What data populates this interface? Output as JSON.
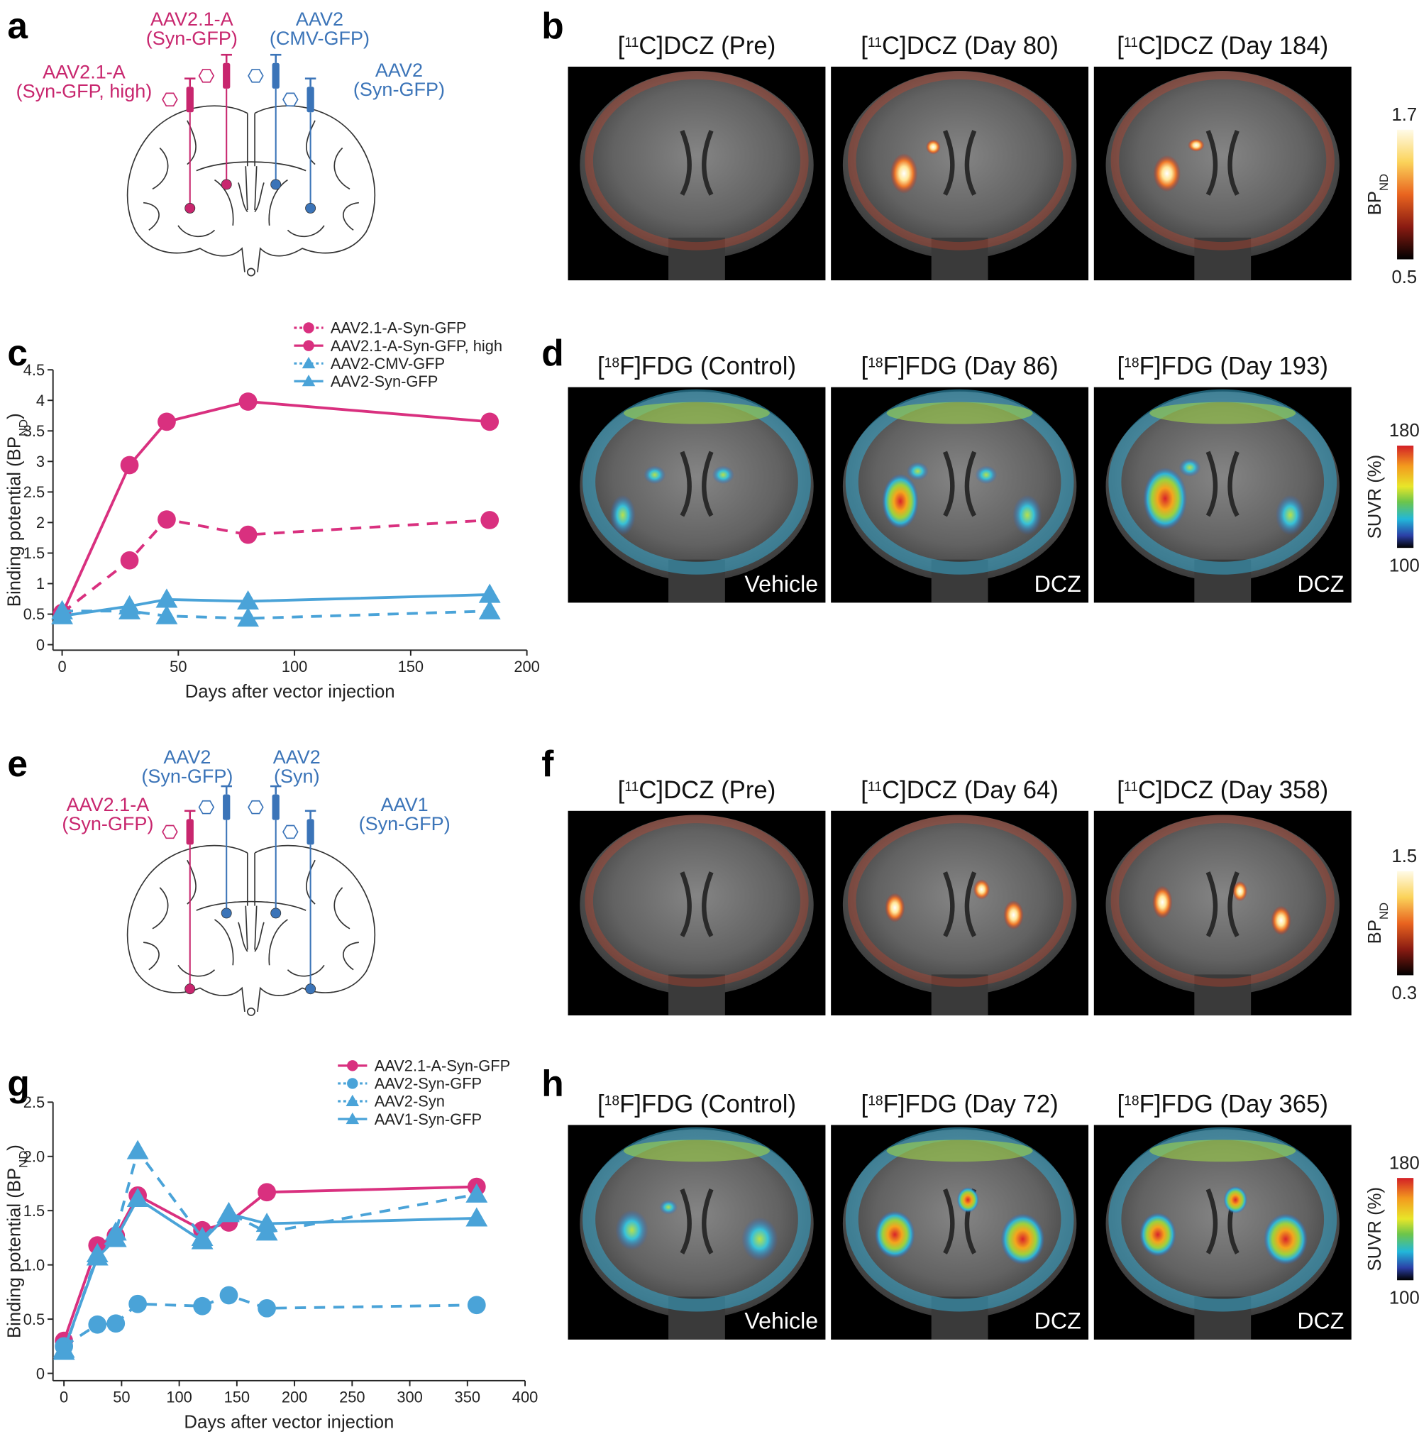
{
  "panels": {
    "a": {
      "label": "a",
      "injections": [
        {
          "lines": [
            "AAV2.1-A",
            "(Syn-GFP, high)"
          ],
          "color": "#c8266e"
        },
        {
          "lines": [
            "AAV2.1-A",
            "(Syn-GFP)"
          ],
          "color": "#c8266e"
        },
        {
          "lines": [
            "AAV2",
            "(CMV-GFP)"
          ],
          "color": "#3b74b8"
        },
        {
          "lines": [
            "AAV2",
            "(Syn-GFP)"
          ],
          "color": "#3b74b8"
        }
      ]
    },
    "b": {
      "label": "b",
      "images": [
        {
          "pre": "[",
          "sup": "11",
          "main": "C]DCZ (Pre)"
        },
        {
          "pre": "[",
          "sup": "11",
          "main": "C]DCZ (Day 80)"
        },
        {
          "pre": "[",
          "sup": "11",
          "main": "C]DCZ (Day 184)"
        }
      ],
      "colorbar": {
        "max": 1.7,
        "min": 0.5,
        "name": "BP",
        "sub": "ND"
      }
    },
    "c": {
      "label": "c"
    },
    "d": {
      "label": "d",
      "images": [
        {
          "pre": "[",
          "sup": "18",
          "main": "F]FDG (Control)",
          "note": "Vehicle"
        },
        {
          "pre": "[",
          "sup": "18",
          "main": "F]FDG (Day 86)",
          "note": "DCZ"
        },
        {
          "pre": "[",
          "sup": "18",
          "main": "F]FDG (Day 193)",
          "note": "DCZ"
        }
      ],
      "colorbar": {
        "max": 180,
        "min": 100,
        "name": "SUVR (%)"
      }
    },
    "e": {
      "label": "e",
      "injections": [
        {
          "lines": [
            "AAV2",
            "(Syn-GFP)"
          ],
          "color": "#3b74b8"
        },
        {
          "lines": [
            "AAV2",
            "(Syn)"
          ],
          "color": "#3b74b8"
        },
        {
          "lines": [
            "AAV2.1-A",
            "(Syn-GFP)"
          ],
          "color": "#c8266e"
        },
        {
          "lines": [
            "AAV1",
            "(Syn-GFP)"
          ],
          "color": "#3b74b8"
        }
      ]
    },
    "f": {
      "label": "f",
      "images": [
        {
          "pre": "[",
          "sup": "11",
          "main": "C]DCZ (Pre)"
        },
        {
          "pre": "[",
          "sup": "11",
          "main": "C]DCZ (Day 64)"
        },
        {
          "pre": "[",
          "sup": "11",
          "main": "C]DCZ (Day 358)"
        }
      ],
      "colorbar": {
        "max": 1.5,
        "min": 0.3,
        "name": "BP",
        "sub": "ND"
      }
    },
    "g": {
      "label": "g"
    },
    "h": {
      "label": "h",
      "images": [
        {
          "pre": "[",
          "sup": "18",
          "main": "F]FDG (Control)",
          "note": "Vehicle"
        },
        {
          "pre": "[",
          "sup": "18",
          "main": "F]FDG (Day 72)",
          "note": "DCZ"
        },
        {
          "pre": "[",
          "sup": "18",
          "main": "F]FDG (Day 365)",
          "note": "DCZ"
        }
      ],
      "colorbar": {
        "max": 180,
        "min": 100,
        "name": "SUVR (%)"
      }
    }
  },
  "chart_data": [
    {
      "type": "line",
      "x_label": "Days after vector injection",
      "y_label": {
        "pre": "Binding potential (BP",
        "sub": "ND",
        "post": ")"
      },
      "xlim": [
        0,
        200
      ],
      "xticks": [
        0,
        50,
        100,
        150,
        200
      ],
      "ylim": [
        0,
        4.5
      ],
      "yticks": [
        0,
        0.5,
        1,
        1.5,
        2,
        2.5,
        3,
        3.5,
        4,
        4.5
      ],
      "x": [
        0,
        29,
        45,
        80,
        184
      ],
      "series": [
        {
          "name": "AAV2.1-A-Syn-GFP",
          "color": "#d9307f",
          "dashed": true,
          "marker": "circle",
          "values": [
            0.52,
            1.38,
            2.05,
            1.8,
            2.04
          ]
        },
        {
          "name": "AAV2.1-A-Syn-GFP, high",
          "color": "#d9307f",
          "dashed": false,
          "marker": "circle",
          "values": [
            0.5,
            2.94,
            3.65,
            3.98,
            3.65
          ]
        },
        {
          "name": "AAV2-CMV-GFP",
          "color": "#4aa3d8",
          "dashed": true,
          "marker": "triangle",
          "values": [
            0.55,
            0.55,
            0.47,
            0.43,
            0.55
          ]
        },
        {
          "name": "AAV2-Syn-GFP",
          "color": "#4aa3d8",
          "dashed": false,
          "marker": "triangle",
          "values": [
            0.47,
            0.63,
            0.74,
            0.71,
            0.82
          ]
        }
      ]
    },
    {
      "type": "line",
      "x_label": "Days after vector injection",
      "y_label": {
        "pre": "Binding potential (BP",
        "sub": "ND",
        "post": ")"
      },
      "xlim": [
        0,
        400
      ],
      "xticks": [
        0,
        50,
        100,
        150,
        200,
        250,
        300,
        350,
        400
      ],
      "ylim": [
        0,
        2.5
      ],
      "yticks": [
        0,
        0.5,
        {
          "value": 1,
          "label": "1.0"
        },
        1.5,
        {
          "value": 2,
          "label": "2.0"
        },
        2.5
      ],
      "x": [
        0,
        29,
        45,
        64,
        120,
        143,
        176,
        358
      ],
      "series": [
        {
          "name": "AAV2.1-A-Syn-GFP",
          "color": "#d9307f",
          "dashed": false,
          "marker": "circle",
          "values": [
            0.3,
            1.18,
            1.27,
            1.64,
            1.32,
            1.39,
            1.67,
            1.72
          ]
        },
        {
          "name": "AAV2-Syn-GFP",
          "color": "#4aa3d8",
          "dashed": true,
          "marker": "circle",
          "values": [
            0.25,
            0.45,
            0.46,
            0.64,
            0.62,
            0.72,
            0.6,
            0.63
          ]
        },
        {
          "name": "AAV2-Syn",
          "color": "#4aa3d8",
          "dashed": true,
          "marker": "triangle",
          "values": [
            0.2,
            1.1,
            1.3,
            2.05,
            1.25,
            1.48,
            1.3,
            1.65
          ]
        },
        {
          "name": "AAV1-Syn-GFP",
          "color": "#4aa3d8",
          "dashed": false,
          "marker": "triangle",
          "values": [
            0.22,
            1.07,
            1.24,
            1.61,
            1.22,
            1.47,
            1.38,
            1.43
          ]
        }
      ]
    }
  ]
}
